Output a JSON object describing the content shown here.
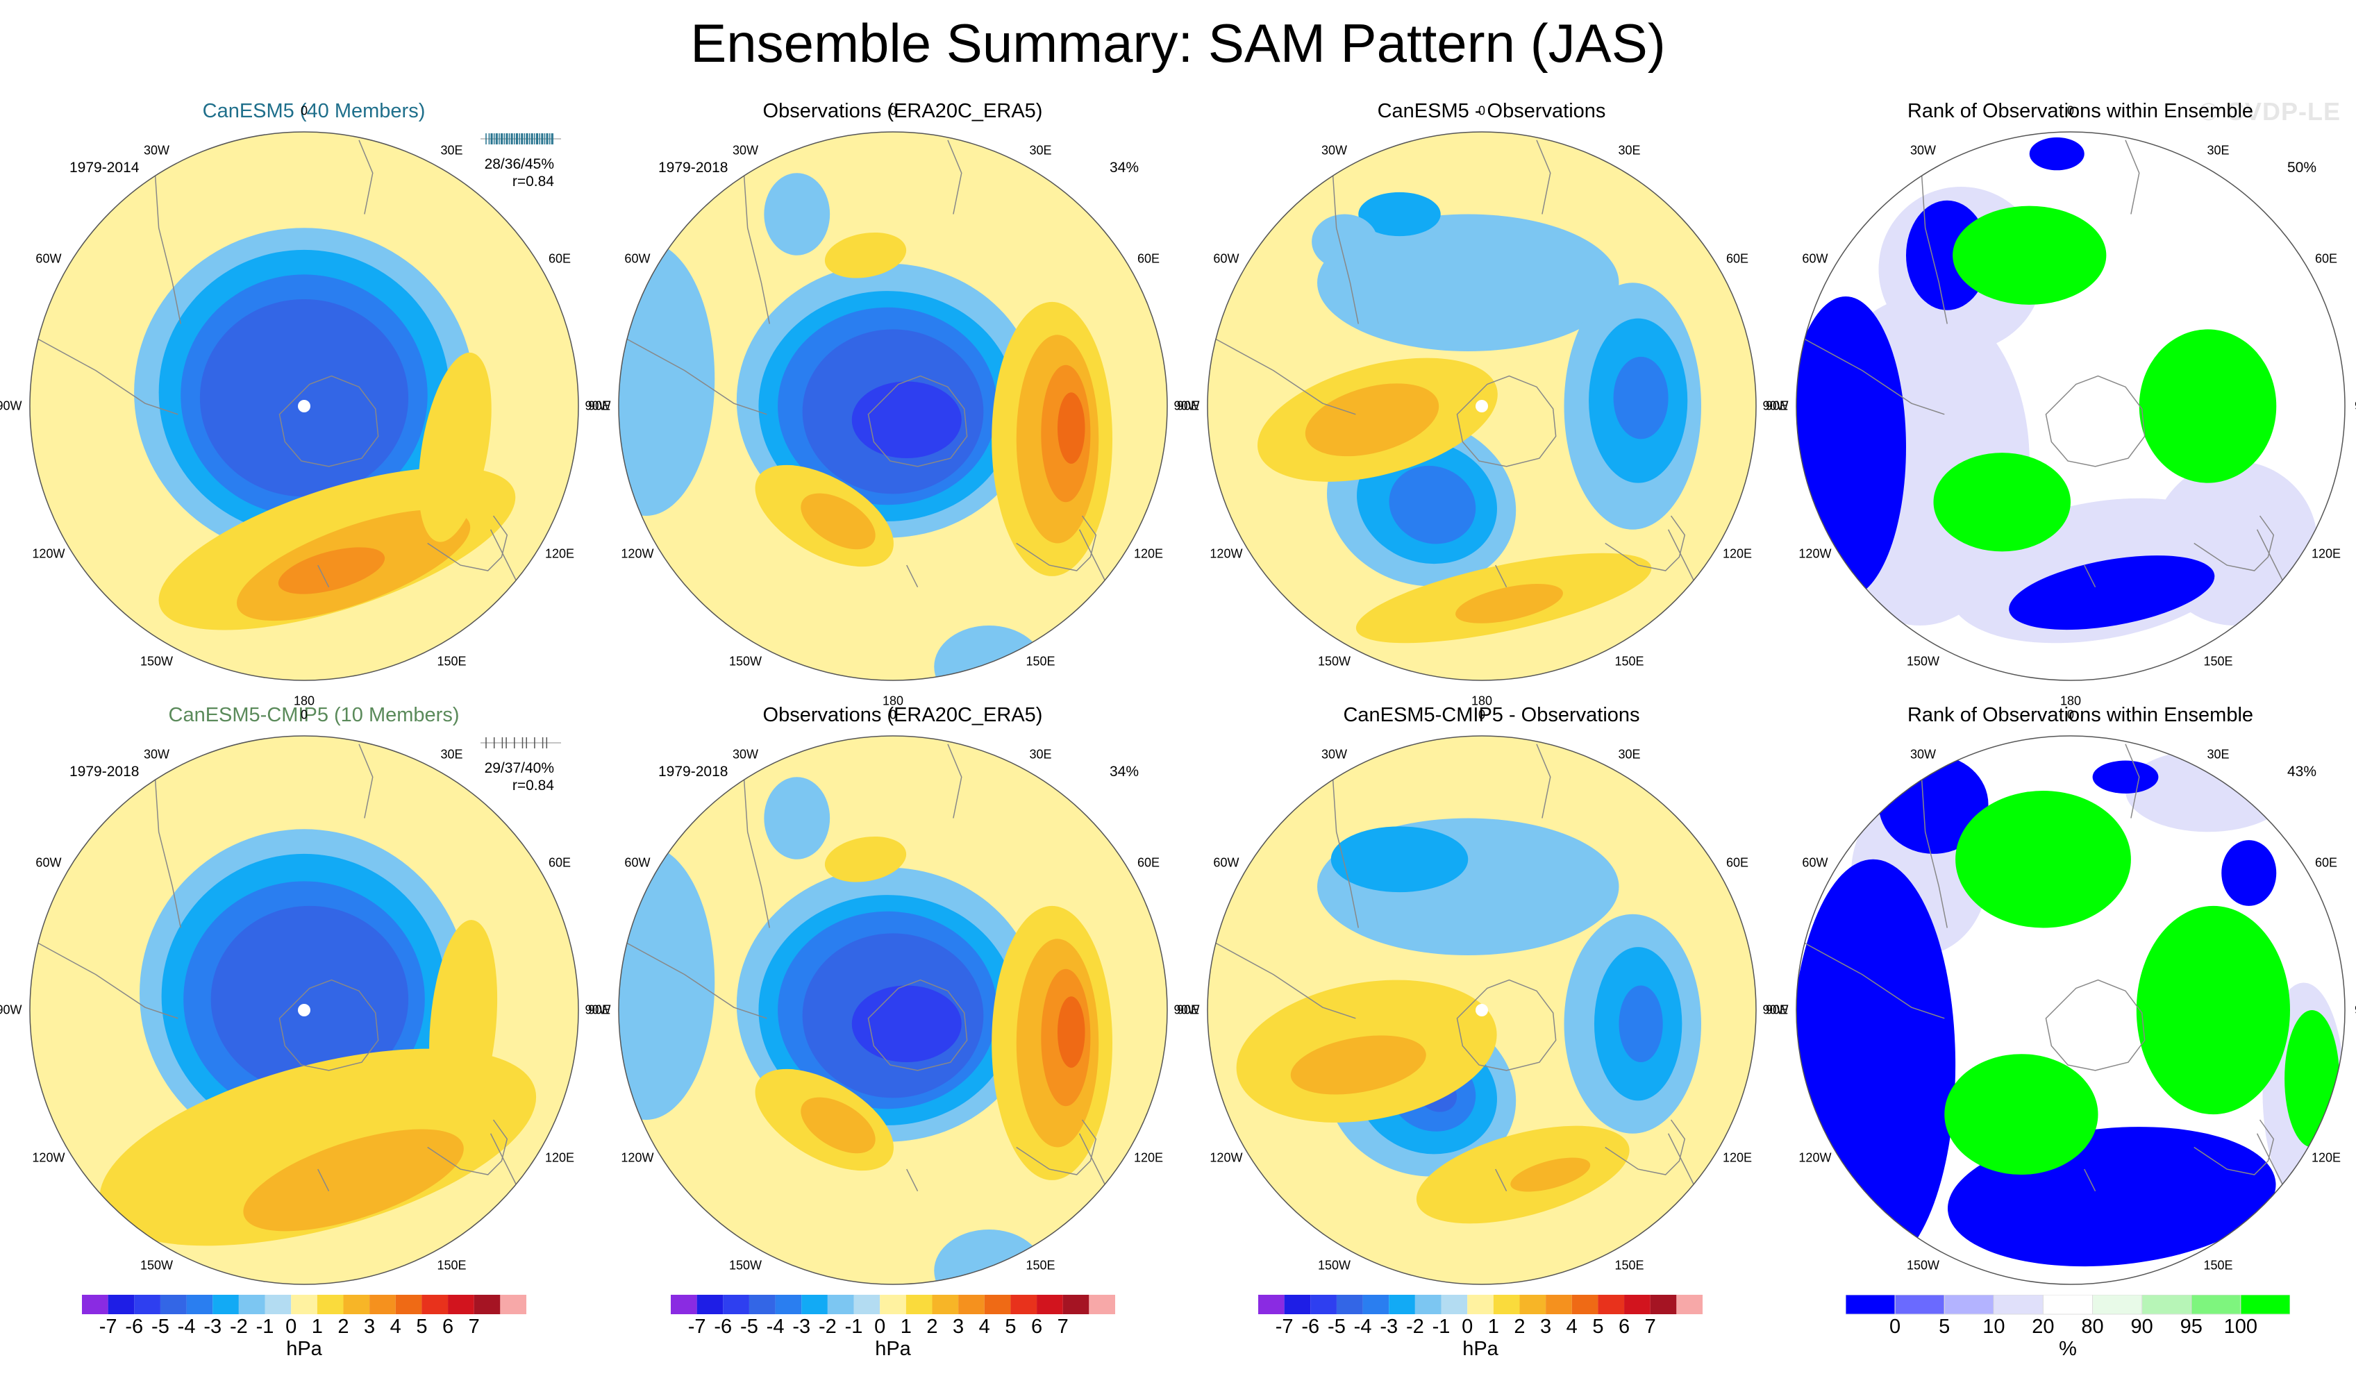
{
  "title": "Ensemble Summary: SAM Pattern (JAS)",
  "watermark": "© CVDP-LE",
  "colors": {
    "model_title": "#1f6f8b",
    "model2_title": "#5a8a5a",
    "pressure_scale": [
      "#8a2be2",
      "#1e1ee6",
      "#2e3ff0",
      "#3366e6",
      "#2a7ef0",
      "#12aaf5",
      "#7cc6f2",
      "#b3dcf2",
      "#fff2a0",
      "#fadb3c",
      "#f7b527",
      "#f5911e",
      "#ef6a15",
      "#e8321c",
      "#d2141e",
      "#a51423",
      "#f7a8a8"
    ],
    "rank_scale": [
      "#0000ff",
      "#6a6aff",
      "#b3b3ff",
      "#e0e0fa",
      "#ffffff",
      "#e8fae8",
      "#b7f5b7",
      "#7ef57e",
      "#00ff00"
    ],
    "land": "#888888"
  },
  "rows": [
    {
      "panels": [
        {
          "kind": "model",
          "title": "CanESM5 (40 Members)",
          "period": "1979-2014",
          "stats": "28/36/45%",
          "r": "r=0.84",
          "tick_count": 40,
          "percent": "",
          "field": "model1"
        },
        {
          "kind": "obs",
          "title": "Observations (ERA20C_ERA5)",
          "period": "1979-2018",
          "percent": "34%",
          "field": "obs"
        },
        {
          "kind": "diff",
          "title": "CanESM5 - Observations",
          "period": "",
          "percent": "",
          "field": "diff1"
        },
        {
          "kind": "rank",
          "title": "Rank of Observations within Ensemble",
          "period": "",
          "percent": "50%",
          "field": "rank1"
        }
      ]
    },
    {
      "panels": [
        {
          "kind": "model",
          "title": "CanESM5-CMIP5 (10 Members)",
          "period": "1979-2018",
          "stats": "29/37/40%",
          "r": "r=0.84",
          "tick_count": 10,
          "percent": "",
          "field": "model2"
        },
        {
          "kind": "obs",
          "title": "Observations (ERA20C_ERA5)",
          "period": "1979-2018",
          "percent": "34%",
          "field": "obs"
        },
        {
          "kind": "diff",
          "title": "CanESM5-CMIP5 - Observations",
          "period": "",
          "percent": "",
          "field": "diff2"
        },
        {
          "kind": "rank",
          "title": "Rank of Observations within Ensemble",
          "period": "",
          "percent": "43%",
          "field": "rank2"
        }
      ]
    }
  ],
  "longitudes": [
    "0",
    "30E",
    "60E",
    "90E",
    "120E",
    "150E",
    "180",
    "150W",
    "120W",
    "90W",
    "60W",
    "30W"
  ],
  "colorbars": {
    "pressure": {
      "labels": [
        "-7",
        "-6",
        "-5",
        "-4",
        "-3",
        "-2",
        "-1",
        "0",
        "1",
        "2",
        "3",
        "4",
        "5",
        "6",
        "7"
      ],
      "unit": "hPa"
    },
    "rank": {
      "labels": [
        "0",
        "5",
        "10",
        "20",
        "80",
        "90",
        "95",
        "100"
      ],
      "unit": "%"
    }
  },
  "chart_data": {
    "type": "heatmap",
    "description": "Polar stereographic maps (Southern Hemisphere) of SAM sea-level-pressure regression patterns (hPa) and rank of observations within ensemble (%).",
    "value_unit": "hPa",
    "color_levels": [
      -7,
      -6,
      -5,
      -4,
      -3,
      -2,
      -1,
      0,
      1,
      2,
      3,
      4,
      5,
      6,
      7
    ],
    "rank_levels": [
      0,
      5,
      10,
      20,
      80,
      90,
      95,
      100
    ],
    "pattern_summary": {
      "model1": {
        "pole_minimum_hPa": -4.5,
        "midlatitude_maximum_hPa": 3.5,
        "pattern_correlation": 0.84
      },
      "model2": {
        "pole_minimum_hPa": -4.5,
        "midlatitude_maximum_hPa": 3.0,
        "pattern_correlation": 0.84
      },
      "obs": {
        "pole_minimum_hPa": -5.5,
        "midlatitude_maximum_hPa": 4.5,
        "percent_variance": 34
      },
      "diff1": {
        "minimum_hPa": -3.5,
        "maximum_hPa": 2.5
      },
      "diff2": {
        "minimum_hPa": -4.5,
        "maximum_hPa": 2.5
      },
      "rank1": {
        "percent_variance": 50
      },
      "rank2": {
        "percent_variance": 43
      }
    }
  }
}
